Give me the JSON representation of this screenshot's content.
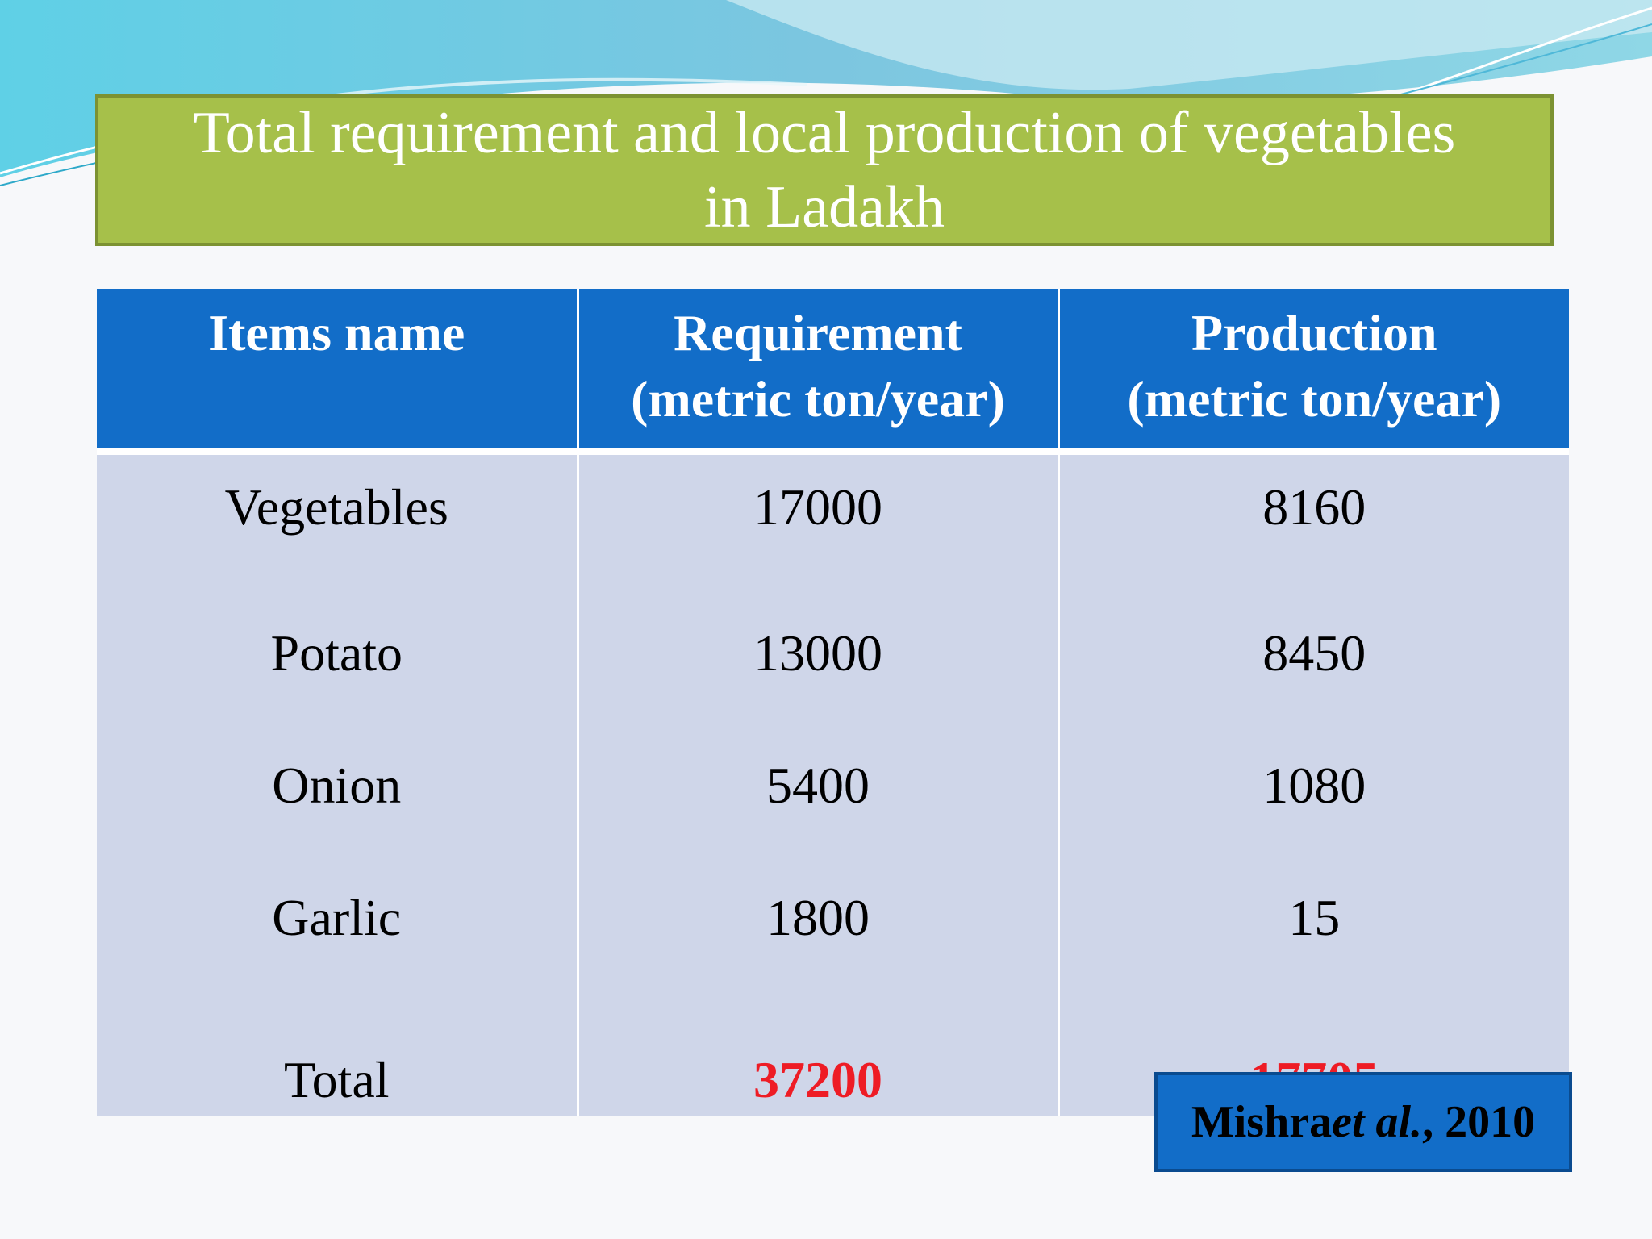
{
  "slide": {
    "title_line1": "Total requirement and local production of vegetables",
    "title_line2": "in Ladakh"
  },
  "table": {
    "headers": [
      {
        "line1": "Items name",
        "line2": ""
      },
      {
        "line1": "Requirement",
        "line2": "(metric ton/year)"
      },
      {
        "line1": "Production",
        "line2": "(metric ton/year)"
      }
    ],
    "rows": [
      {
        "item": "Vegetables",
        "requirement": "17000",
        "production": "8160"
      },
      {
        "item": "Potato",
        "requirement": "13000",
        "production": "8450"
      },
      {
        "item": "Onion",
        "requirement": "5400",
        "production": "1080"
      },
      {
        "item": "Garlic",
        "requirement": "1800",
        "production": "15"
      }
    ],
    "total": {
      "item": "Total",
      "requirement": "37200",
      "production": "17705"
    }
  },
  "citation": {
    "author": "Mishra ",
    "etal": "et al.",
    "year": ", 2010"
  },
  "colors": {
    "title_bg": "#a6c04a",
    "header_bg": "#126dc8",
    "cell_bg": "#cfd6e9",
    "total_text": "#ee1c25",
    "citation_bg": "#126dc8"
  }
}
